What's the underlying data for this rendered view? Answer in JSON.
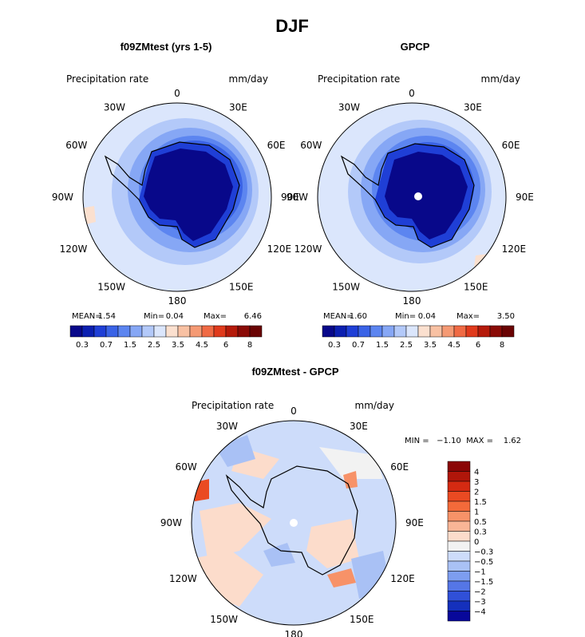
{
  "chart_data": [
    {
      "type": "heatmap",
      "projection": "south-polar-stereographic",
      "title": "f09ZMtest (yrs 1-5)",
      "left_label": "Precipitation rate",
      "right_label": "mm/day",
      "lon_labels": [
        "0",
        "30E",
        "60E",
        "90E",
        "120E",
        "150E",
        "180",
        "150W",
        "120W",
        "90W",
        "60W",
        "30W"
      ],
      "stats": {
        "mean": "1.54",
        "min": "0.04",
        "max": "6.46"
      },
      "stat_labels": {
        "mean": "MEAN=",
        "min": "Min=",
        "max": "Max="
      },
      "legend_placement": "bottom",
      "levels": [
        "0.3",
        "0.7",
        "1.5",
        "2.5",
        "3.5",
        "4.5",
        "6",
        "8"
      ],
      "color_bins": [
        "#08088a",
        "#0b1fb0",
        "#1f3fd6",
        "#3a63e6",
        "#5c85f0",
        "#86a7f5",
        "#b3c9f9",
        "#dbe6fc",
        "#fbe0cf",
        "#f8c1a3",
        "#f59a74",
        "#f06a44",
        "#e03a1c",
        "#b51a0a",
        "#8a0a06",
        "#6a0303"
      ]
    },
    {
      "type": "heatmap",
      "projection": "south-polar-stereographic",
      "title": "GPCP",
      "left_label": "Precipitation rate",
      "right_label": "mm/day",
      "lon_labels": [
        "0",
        "30E",
        "60E",
        "90E",
        "120E",
        "150E",
        "180",
        "150W",
        "120W",
        "90W",
        "60W",
        "30W"
      ],
      "stats": {
        "mean": "1.60",
        "min": "0.04",
        "max": "3.50"
      },
      "stat_labels": {
        "mean": "MEAN=",
        "min": "Min=",
        "max": "Max="
      },
      "legend_placement": "bottom",
      "levels": [
        "0.3",
        "0.7",
        "1.5",
        "2.5",
        "3.5",
        "4.5",
        "6",
        "8"
      ],
      "color_bins": [
        "#08088a",
        "#0b1fb0",
        "#1f3fd6",
        "#3a63e6",
        "#5c85f0",
        "#86a7f5",
        "#b3c9f9",
        "#dbe6fc",
        "#fbe0cf",
        "#f8c1a3",
        "#f59a74",
        "#f06a44",
        "#e03a1c",
        "#b51a0a",
        "#8a0a06",
        "#6a0303"
      ]
    },
    {
      "type": "heatmap",
      "projection": "south-polar-stereographic",
      "title": "f09ZMtest - GPCP",
      "left_label": "Precipitation rate",
      "right_label": "mm/day",
      "lon_labels": [
        "0",
        "30E",
        "60E",
        "90E",
        "120E",
        "150E",
        "180",
        "150W",
        "120W",
        "90W",
        "60W",
        "30W"
      ],
      "stats_line": "MIN =   −1.10  MAX =    1.62",
      "stats": {
        "min": "-1.10",
        "max": "1.62"
      },
      "legend_placement": "right",
      "levels": [
        "4",
        "3",
        "2",
        "1.5",
        "1",
        "0.5",
        "0.3",
        "0",
        "−0.3",
        "−0.5",
        "−1",
        "−1.5",
        "−2",
        "−3",
        "−4"
      ],
      "color_bins": [
        "#8a0606",
        "#b0160a",
        "#d42a12",
        "#ea4a22",
        "#f36a3a",
        "#f79268",
        "#f9b596",
        "#fcdccb",
        "#f2f2f2",
        "#cddcfa",
        "#a9c1f5",
        "#7d9df0",
        "#5576e6",
        "#3050d8",
        "#1530bc",
        "#08089a"
      ]
    }
  ],
  "figure": {
    "title": "DJF"
  }
}
